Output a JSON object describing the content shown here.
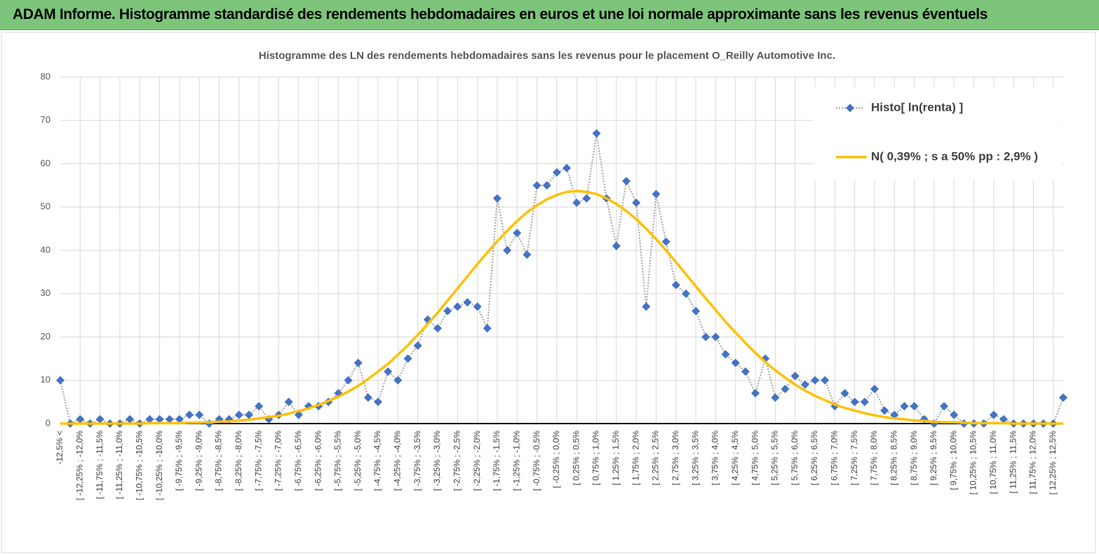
{
  "header": {
    "title": "ADAM Informe. Histogramme standardisé des rendements hebdomadaires en euros et une loi normale approximante sans les revenus éventuels"
  },
  "chart_data": {
    "type": "line",
    "title": "Histogramme des LN des rendements hebdomadaires sans les revenus pour le placement O_Reilly Automotive Inc.",
    "categories": [
      "-12,5% <",
      null,
      "[ -12,25% ; -12,0%",
      null,
      "[ -11,75% ; -11,5%",
      null,
      "[ -11,25% ; -11,0%",
      null,
      "[ -10,75% ; -10,5%",
      null,
      "[ -10,25% ; -10,0%",
      null,
      "[ -9,75% ; -9,5%",
      null,
      "[ -9,25% ; -9,0%",
      null,
      "[ -8,75% ; -8,5%",
      null,
      "[ -8,25% ; -8,0%",
      null,
      "[ -7,75% ; -7,5%",
      null,
      "[ -7,25% ; -7,0%",
      null,
      "[ -6,75% ; -6,5%",
      null,
      "[ -6,25% ; -6,0%",
      null,
      "[ -5,75% ; -5,5%",
      null,
      "[ -5,25% ; -5,0%",
      null,
      "[ -4,75% ; -4,5%",
      null,
      "[ -4,25% ; -4,0%",
      null,
      "[ -3,75% ; -3,5%",
      null,
      "[ -3,25% ; -3,0%",
      null,
      "[ -2,75% ; -2,5%",
      null,
      "[ -2,25% ; -2,0%",
      null,
      "[ -1,75% ; -1,5%",
      null,
      "[ -1,25% ; -1,0%",
      null,
      "[ -0,75% ; -0,5%",
      null,
      "[ -0,25% ; 0,0%",
      null,
      "[ 0,25% ; 0,5%",
      null,
      "[ 0,75% ; 1,0%",
      null,
      "[ 1,25% ; 1,5%",
      null,
      "[ 1,75% ; 2,0%",
      null,
      "[ 2,25% ; 2,5%",
      null,
      "[ 2,75% ; 3,0%",
      null,
      "[ 3,25% ; 3,5%",
      null,
      "[ 3,75% ; 4,0%",
      null,
      "[ 4,25% ; 4,5%",
      null,
      "[ 4,75% ; 5,0%",
      null,
      "[ 5,25% ; 5,5%",
      null,
      "[ 5,75% ; 6,0%",
      null,
      "[ 6,25% ; 6,5%",
      null,
      "[ 6,75% ; 7,0%",
      null,
      "[ 7,25% ; 7,5%",
      null,
      "[ 7,75% ; 8,0%",
      null,
      "[ 8,25% ; 8,5%",
      null,
      "[ 8,75% ; 9,0%",
      null,
      "[ 9,25% ; 9,5%",
      null,
      "[ 9,75% ; 10,0%",
      null,
      "[ 10,25% ; 10,5%",
      null,
      "[ 10,75% ; 11,0%",
      null,
      "[ 11,25% ; 11,5%",
      null,
      "[ 11,75% ; 12,0%",
      null,
      "[ 12,25% ; 12,5%",
      null
    ],
    "series": [
      {
        "name": "Histo[ ln(renta) ]",
        "color": "#4472c4",
        "line_color": "#a5a5a5",
        "values": [
          10,
          0,
          1,
          0,
          1,
          0,
          0,
          1,
          0,
          1,
          1,
          1,
          1,
          2,
          2,
          0,
          1,
          1,
          2,
          2,
          4,
          1,
          2,
          5,
          2,
          4,
          4,
          5,
          7,
          10,
          14,
          6,
          5,
          12,
          10,
          15,
          18,
          24,
          22,
          26,
          27,
          28,
          27,
          22,
          52,
          40,
          44,
          39,
          55,
          55,
          58,
          59,
          51,
          52,
          67,
          52,
          41,
          56,
          51,
          27,
          53,
          42,
          32,
          30,
          26,
          20,
          20,
          16,
          14,
          12,
          7,
          15,
          6,
          8,
          11,
          9,
          10,
          10,
          4,
          7,
          5,
          5,
          8,
          3,
          2,
          4,
          4,
          1,
          0,
          4,
          2,
          0,
          0,
          0,
          2,
          1,
          0,
          0,
          0,
          0,
          0,
          6
        ]
      },
      {
        "name": "N( 0,39% ; s a 50% pp : 2,9% )",
        "color": "#ffc000",
        "values": [
          0,
          0,
          0,
          0,
          0,
          0,
          0,
          0,
          0,
          0.1,
          0.1,
          0.1,
          0.1,
          0.2,
          0.2,
          0.3,
          0.4,
          0.5,
          0.7,
          0.9,
          1.2,
          1.5,
          1.8,
          2.3,
          2.9,
          3.5,
          4.3,
          5.2,
          6.2,
          7.4,
          8.7,
          10.3,
          12.0,
          13.8,
          15.9,
          18.1,
          20.5,
          23.0,
          25.6,
          28.4,
          31.2,
          34.0,
          36.8,
          39.5,
          42.1,
          44.5,
          46.8,
          48.8,
          50.4,
          51.8,
          52.8,
          53.5,
          53.7,
          53.5,
          53.0,
          52.0,
          50.7,
          49.1,
          47.2,
          45.0,
          42.6,
          40.0,
          37.3,
          34.5,
          31.7,
          28.9,
          26.2,
          23.5,
          21.0,
          18.6,
          16.3,
          14.2,
          12.3,
          10.6,
          9.0,
          7.6,
          6.4,
          5.4,
          4.4,
          3.6,
          3.0,
          2.4,
          1.9,
          1.5,
          1.2,
          1.0,
          0.7,
          0.6,
          0.4,
          0.3,
          0.3,
          0.2,
          0.1,
          0.1,
          0.1,
          0.1,
          0,
          0,
          0,
          0,
          0,
          0
        ]
      }
    ],
    "ylim": [
      0,
      80
    ],
    "yticks": [
      0,
      10,
      20,
      30,
      40,
      50,
      60,
      70,
      80
    ],
    "grid": true,
    "legend": "top-right"
  }
}
